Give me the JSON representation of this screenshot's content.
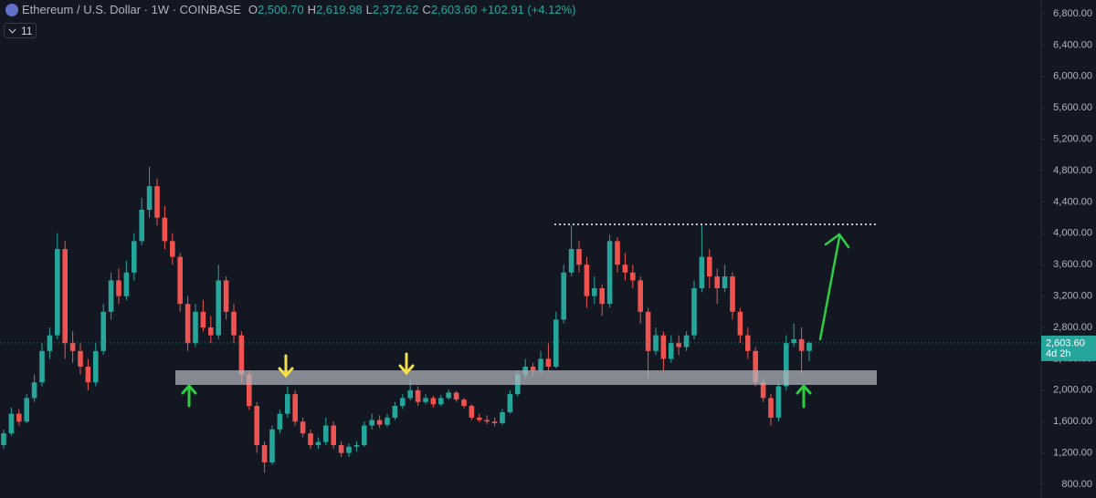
{
  "chart_data": {
    "type": "candlestick",
    "header": {
      "symbol": "Ethereum / U.S. Dollar · 1W · COINBASE",
      "ohlc": [
        {
          "key": "O",
          "value": "2,500.70"
        },
        {
          "key": "H",
          "value": "2,619.98"
        },
        {
          "key": "L",
          "value": "2,372.62"
        },
        {
          "key": "C",
          "value": "2,603.60"
        }
      ],
      "change": "+102.91 (+4.12%)",
      "indicator_count": "11"
    },
    "up_color": "#26a69a",
    "down_color": "#ef5350",
    "candles": [
      [
        1300,
        1500,
        1250,
        1450
      ],
      [
        1450,
        1780,
        1420,
        1700
      ],
      [
        1700,
        1760,
        1550,
        1600
      ],
      [
        1600,
        1950,
        1580,
        1900
      ],
      [
        1900,
        2200,
        1850,
        2100
      ],
      [
        2100,
        2600,
        2050,
        2500
      ],
      [
        2500,
        2800,
        2400,
        2700
      ],
      [
        2700,
        4000,
        2650,
        3800
      ],
      [
        3800,
        3900,
        2400,
        2600
      ],
      [
        2600,
        2750,
        2350,
        2500
      ],
      [
        2500,
        2600,
        2200,
        2300
      ],
      [
        2300,
        2400,
        2000,
        2100
      ],
      [
        2100,
        2600,
        2050,
        2500
      ],
      [
        2500,
        3100,
        2450,
        3000
      ],
      [
        3000,
        3500,
        2900,
        3400
      ],
      [
        3400,
        3550,
        3100,
        3200
      ],
      [
        3200,
        3650,
        3150,
        3500
      ],
      [
        3500,
        4000,
        3400,
        3900
      ],
      [
        3900,
        4450,
        3850,
        4300
      ],
      [
        4300,
        4850,
        4200,
        4600
      ],
      [
        4600,
        4700,
        4100,
        4200
      ],
      [
        4200,
        4350,
        3800,
        3900
      ],
      [
        3900,
        4000,
        3600,
        3700
      ],
      [
        3700,
        3750,
        3000,
        3100
      ],
      [
        3100,
        3200,
        2500,
        2600
      ],
      [
        2600,
        3100,
        2550,
        3000
      ],
      [
        3000,
        3150,
        2750,
        2800
      ],
      [
        2800,
        2950,
        2600,
        2700
      ],
      [
        2700,
        3600,
        2650,
        3400
      ],
      [
        3400,
        3450,
        2900,
        3000
      ],
      [
        3000,
        3100,
        2600,
        2700
      ],
      [
        2700,
        2750,
        2100,
        2200
      ],
      [
        2200,
        2250,
        1750,
        1800
      ],
      [
        1800,
        1850,
        1200,
        1300
      ],
      [
        1300,
        1350,
        950,
        1080
      ],
      [
        1080,
        1550,
        1050,
        1500
      ],
      [
        1500,
        1750,
        1450,
        1700
      ],
      [
        1700,
        2050,
        1650,
        1950
      ],
      [
        1950,
        2000,
        1550,
        1600
      ],
      [
        1600,
        1650,
        1400,
        1450
      ],
      [
        1450,
        1500,
        1250,
        1300
      ],
      [
        1300,
        1400,
        1250,
        1340
      ],
      [
        1340,
        1650,
        1300,
        1550
      ],
      [
        1550,
        1600,
        1250,
        1300
      ],
      [
        1300,
        1350,
        1150,
        1200
      ],
      [
        1200,
        1320,
        1150,
        1280
      ],
      [
        1280,
        1350,
        1220,
        1300
      ],
      [
        1300,
        1600,
        1280,
        1550
      ],
      [
        1550,
        1700,
        1500,
        1620
      ],
      [
        1620,
        1680,
        1520,
        1560
      ],
      [
        1560,
        1700,
        1530,
        1650
      ],
      [
        1650,
        1850,
        1620,
        1800
      ],
      [
        1800,
        1950,
        1760,
        1900
      ],
      [
        1900,
        2150,
        1870,
        2000
      ],
      [
        2000,
        2050,
        1800,
        1850
      ],
      [
        1850,
        1950,
        1820,
        1900
      ],
      [
        1900,
        1930,
        1780,
        1820
      ],
      [
        1820,
        1940,
        1800,
        1900
      ],
      [
        1900,
        2010,
        1880,
        1970
      ],
      [
        1970,
        1990,
        1850,
        1880
      ],
      [
        1880,
        1900,
        1770,
        1800
      ],
      [
        1800,
        1820,
        1620,
        1650
      ],
      [
        1650,
        1700,
        1590,
        1620
      ],
      [
        1620,
        1680,
        1570,
        1600
      ],
      [
        1600,
        1650,
        1540,
        1580
      ],
      [
        1580,
        1760,
        1560,
        1720
      ],
      [
        1720,
        2000,
        1700,
        1950
      ],
      [
        1950,
        2250,
        1920,
        2200
      ],
      [
        2200,
        2400,
        2150,
        2300
      ],
      [
        2300,
        2350,
        2180,
        2250
      ],
      [
        2250,
        2500,
        2220,
        2400
      ],
      [
        2400,
        2600,
        2250,
        2300
      ],
      [
        2300,
        3000,
        2280,
        2900
      ],
      [
        2900,
        3600,
        2850,
        3500
      ],
      [
        3500,
        4100,
        3450,
        3800
      ],
      [
        3800,
        3900,
        3500,
        3600
      ],
      [
        3600,
        3700,
        3050,
        3200
      ],
      [
        3200,
        3450,
        3100,
        3300
      ],
      [
        3300,
        3350,
        2950,
        3100
      ],
      [
        3100,
        3980,
        3050,
        3900
      ],
      [
        3900,
        3950,
        3500,
        3600
      ],
      [
        3600,
        3750,
        3400,
        3500
      ],
      [
        3500,
        3600,
        3300,
        3400
      ],
      [
        3400,
        3450,
        2850,
        3000
      ],
      [
        3000,
        3050,
        2150,
        2500
      ],
      [
        2500,
        2800,
        2450,
        2700
      ],
      [
        2700,
        2750,
        2250,
        2400
      ],
      [
        2400,
        2700,
        2350,
        2600
      ],
      [
        2600,
        2700,
        2450,
        2550
      ],
      [
        2550,
        2750,
        2500,
        2700
      ],
      [
        2700,
        3400,
        2650,
        3300
      ],
      [
        3300,
        4100,
        3250,
        3700
      ],
      [
        3700,
        3800,
        3300,
        3450
      ],
      [
        3450,
        3550,
        3100,
        3300
      ],
      [
        3300,
        3600,
        3250,
        3450
      ],
      [
        3450,
        3500,
        2900,
        3000
      ],
      [
        3000,
        3050,
        2600,
        2700
      ],
      [
        2700,
        2800,
        2400,
        2500
      ],
      [
        2500,
        2550,
        2050,
        2100
      ],
      [
        2100,
        2150,
        1850,
        1900
      ],
      [
        1900,
        1950,
        1550,
        1650
      ],
      [
        1650,
        2100,
        1600,
        2050
      ],
      [
        2050,
        2700,
        2000,
        2600
      ],
      [
        2600,
        2850,
        2550,
        2650
      ],
      [
        2650,
        2800,
        2200,
        2500.7
      ],
      [
        2500.7,
        2619.98,
        2372.62,
        2603.6
      ]
    ],
    "ylim": [
      626,
      6974
    ],
    "yticks": [
      {
        "value": 800,
        "label": "800.00"
      },
      {
        "value": 1200,
        "label": "1,200.00"
      },
      {
        "value": 1600,
        "label": "1,600.00"
      },
      {
        "value": 2000,
        "label": "2,000.00"
      },
      {
        "value": 2400,
        "label": "2,400.00"
      },
      {
        "value": 2800,
        "label": "2,800.00"
      },
      {
        "value": 3200,
        "label": "3,200.00"
      },
      {
        "value": 3600,
        "label": "3,600.00"
      },
      {
        "value": 4000,
        "label": "4,000.00"
      },
      {
        "value": 4400,
        "label": "4,400.00"
      },
      {
        "value": 4800,
        "label": "4,800.00"
      },
      {
        "value": 5200,
        "label": "5,200.00"
      },
      {
        "value": 5600,
        "label": "5,600.00"
      },
      {
        "value": 6000,
        "label": "6,000.00"
      },
      {
        "value": 6400,
        "label": "6,400.00"
      },
      {
        "value": 6800,
        "label": "6,800.00"
      }
    ],
    "grid": false,
    "price_tag": {
      "value": 2603.6,
      "label": "2,603.60",
      "countdown": "4d 2h"
    }
  }
}
